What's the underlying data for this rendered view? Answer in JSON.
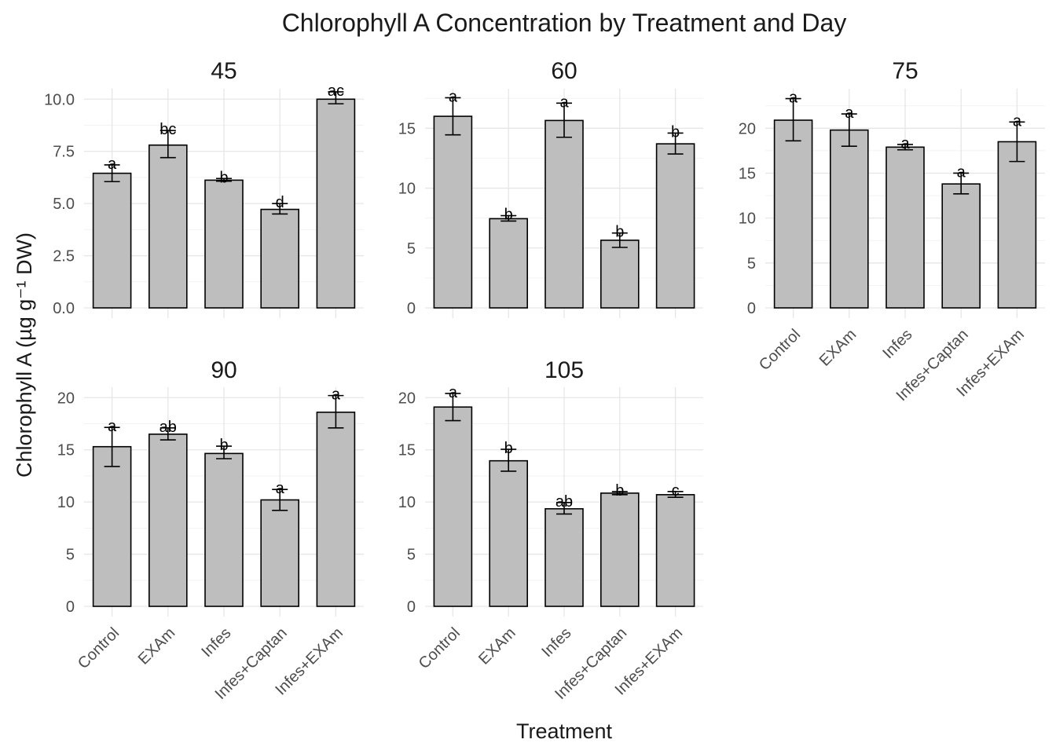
{
  "chart_data": {
    "type": "bar",
    "title": "Chlorophyll A Concentration by Treatment and Day",
    "xlabel": "Treatment",
    "ylabel": "Chlorophyll A (µg g⁻¹ DW)",
    "categories": [
      "Control",
      "EXAm",
      "Infes",
      "Infes+Captan",
      "Infes+EXAm"
    ],
    "grid": true,
    "bar_color": "#bebebe",
    "facets": [
      {
        "label": "45",
        "ylim": [
          0,
          10.5
        ],
        "yticks": [
          0,
          2.5,
          5,
          7.5,
          10
        ],
        "ytick_labels": [
          "0.0",
          "2.5",
          "5.0",
          "7.5",
          "10.0"
        ],
        "values": [
          6.45,
          7.8,
          6.12,
          4.72,
          10.0
        ],
        "err_low": [
          6.05,
          7.2,
          6.07,
          4.5,
          9.78
        ],
        "err_high": [
          6.85,
          8.5,
          6.2,
          5.0,
          10.35
        ],
        "letters": [
          "a",
          "bc",
          "b",
          "d",
          "ac"
        ]
      },
      {
        "label": "60",
        "ylim": [
          0,
          18.3
        ],
        "yticks": [
          0,
          5,
          10,
          15
        ],
        "ytick_labels": [
          "0",
          "5",
          "10",
          "15"
        ],
        "values": [
          16.0,
          7.45,
          15.65,
          5.65,
          13.7
        ],
        "err_low": [
          14.45,
          7.25,
          14.25,
          5.05,
          12.85
        ],
        "err_high": [
          17.55,
          7.7,
          17.1,
          6.25,
          14.6
        ],
        "letters": [
          "a",
          "b",
          "a",
          "b",
          "b"
        ]
      },
      {
        "label": "75",
        "ylim": [
          0,
          24.4
        ],
        "yticks": [
          0,
          5,
          10,
          15,
          20
        ],
        "ytick_labels": [
          "0",
          "5",
          "10",
          "15",
          "20"
        ],
        "values": [
          20.9,
          19.8,
          17.9,
          13.8,
          18.5
        ],
        "err_low": [
          18.6,
          18.0,
          17.6,
          12.7,
          16.3
        ],
        "err_high": [
          23.3,
          21.6,
          18.2,
          15.0,
          20.7
        ],
        "letters": [
          "a",
          "a",
          "a",
          "a",
          "a"
        ]
      },
      {
        "label": "90",
        "ylim": [
          0,
          21
        ],
        "yticks": [
          0,
          5,
          10,
          15,
          20
        ],
        "ytick_labels": [
          "0",
          "5",
          "10",
          "15",
          "20"
        ],
        "values": [
          15.3,
          16.5,
          14.65,
          10.2,
          18.6
        ],
        "err_low": [
          13.4,
          15.95,
          14.15,
          9.2,
          17.1
        ],
        "err_high": [
          17.15,
          17.1,
          15.35,
          11.2,
          20.2
        ],
        "letters": [
          "a",
          "ab",
          "b",
          "a",
          "a"
        ]
      },
      {
        "label": "105",
        "ylim": [
          0,
          21
        ],
        "yticks": [
          0,
          5,
          10,
          15,
          20
        ],
        "ytick_labels": [
          "0",
          "5",
          "10",
          "15",
          "20"
        ],
        "values": [
          19.1,
          13.95,
          9.35,
          10.85,
          10.7
        ],
        "err_low": [
          17.8,
          12.95,
          8.85,
          10.7,
          10.45
        ],
        "err_high": [
          20.4,
          15.05,
          9.95,
          11.0,
          11.0
        ],
        "letters": [
          "a",
          "b",
          "ab",
          "b",
          "c"
        ]
      }
    ]
  }
}
